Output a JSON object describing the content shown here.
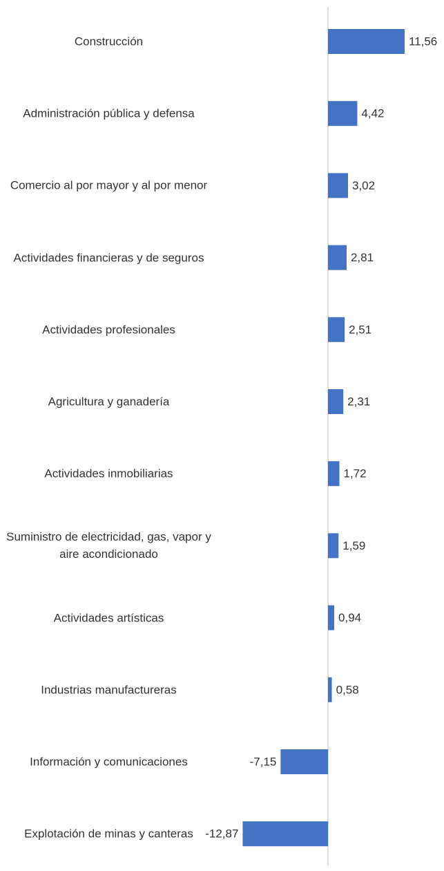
{
  "chart_data": {
    "type": "bar",
    "orientation": "horizontal",
    "color": "#4472c4",
    "categories": [
      "Construcción",
      "Administración pública y defensa",
      "Comercio al por mayor y al por menor",
      "Actividades financieras y de seguros",
      "Actividades profesionales",
      "Agricultura y ganadería",
      "Actividades inmobiliarias",
      "Suministro de electricidad, gas, vapor y aire acondicionado",
      "Actividades artísticas",
      "Industrias manufactureras",
      "Información y comunicaciones",
      "Explotación de minas y canteras"
    ],
    "values": [
      11.56,
      4.42,
      3.02,
      2.81,
      2.51,
      2.31,
      1.72,
      1.59,
      0.94,
      0.58,
      -7.15,
      -12.87
    ],
    "value_labels": [
      "11,56",
      "4,42",
      "3,02",
      "2,81",
      "2,51",
      "2,31",
      "1,72",
      "1,59",
      "0,94",
      "0,58",
      "-7,15",
      "-12,87"
    ]
  }
}
